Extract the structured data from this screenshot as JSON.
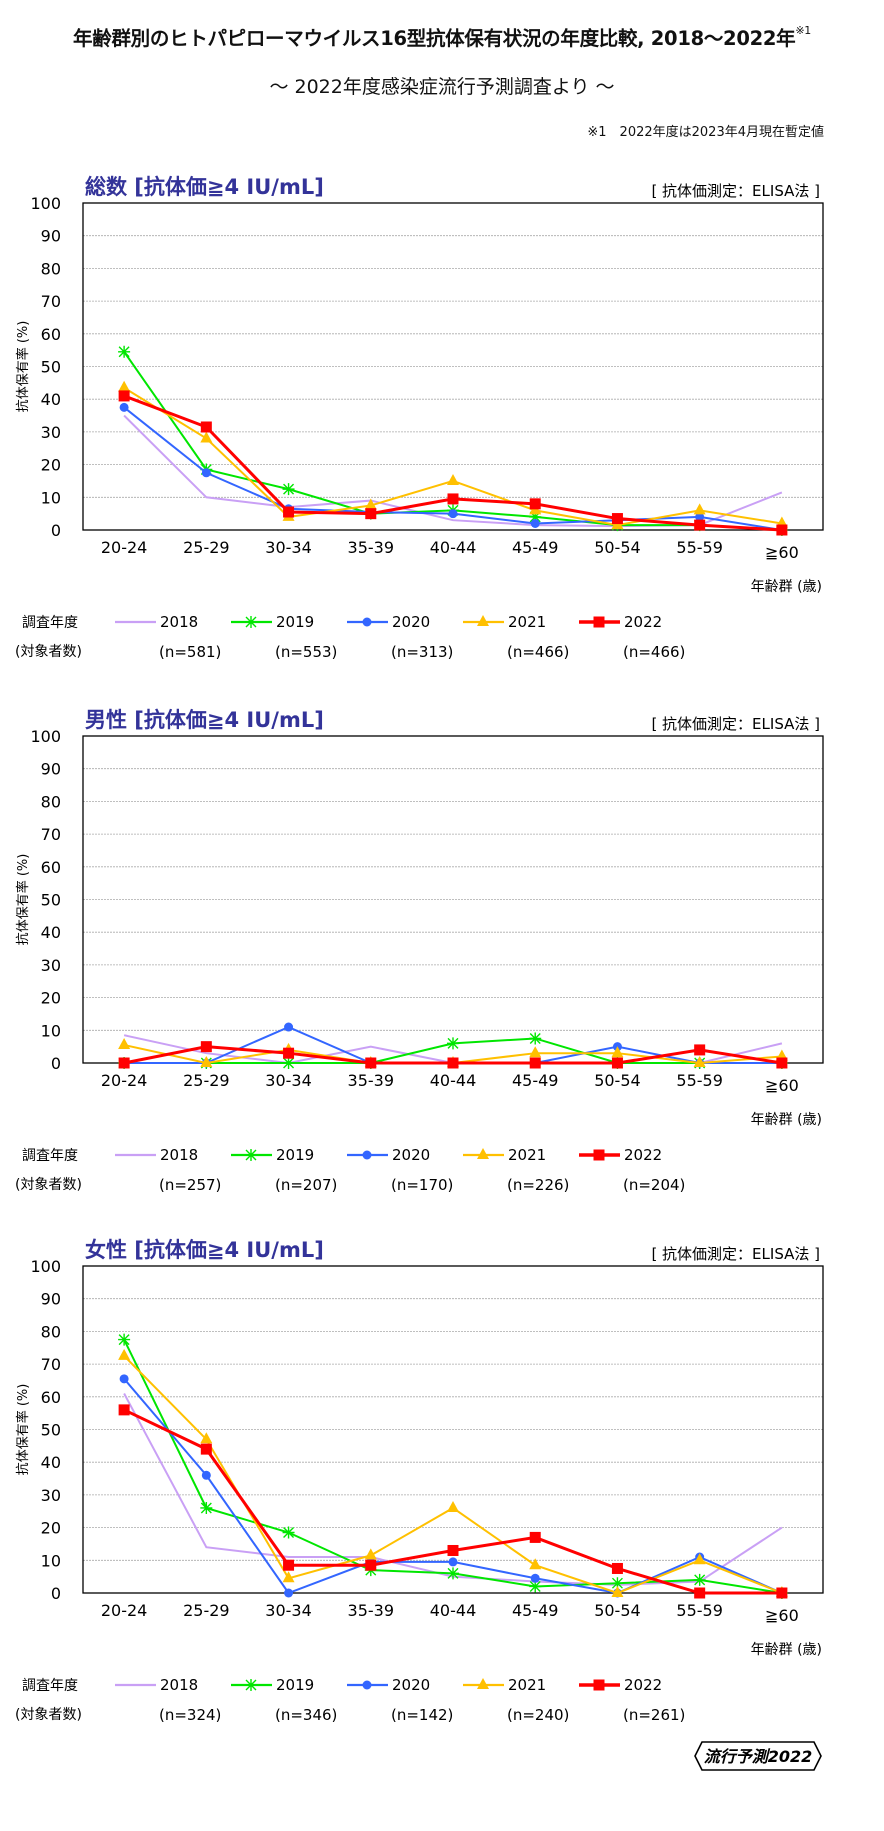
{
  "header": {
    "title": "年齢群別のヒトパピローマウイルス16型抗体保有状況の年度比較, 2018～2022年",
    "title_note_mark": "※1",
    "subtitle": "～ 2022年度感染症流行予測調査より ～",
    "footnote": "※1　2022年度は2023年4月現在暫定値"
  },
  "logo": {
    "text": "流行予測2022"
  },
  "colors": {
    "2018": "#c9a0f5",
    "2019": "#00e600",
    "2020": "#3366ff",
    "2021": "#ffc000",
    "2022": "#ff0000",
    "heading": "#333399"
  },
  "chart_data": [
    {
      "type": "line",
      "title": "総数 [抗体価≧4 IU/mL]",
      "method_note": "[ 抗体価測定：ELISA法 ]",
      "ylabel": "抗体保有率 (%)",
      "xlabel": "年齢群 (歳)",
      "ylim": [
        0,
        100
      ],
      "yticks": [
        "0",
        "10",
        "20",
        "30",
        "40",
        "50",
        "60",
        "70",
        "80",
        "90",
        "100"
      ],
      "grid": true,
      "legend_title": "調査年度",
      "legend_subtitle": "(対象者数)",
      "categories": [
        "20-24",
        "25-29",
        "30-34",
        "35-39",
        "40-44",
        "45-49",
        "50-54",
        "55-59",
        "≧60"
      ],
      "series": [
        {
          "name": "2018",
          "n": "(n=581)",
          "marker": "none",
          "values": [
            35,
            10,
            7,
            9,
            3,
            1.5,
            1.2,
            1.5,
            11.5
          ]
        },
        {
          "name": "2019",
          "n": "(n=553)",
          "marker": "asterisk",
          "values": [
            54.5,
            18.5,
            12.5,
            5,
            6,
            4,
            1.5,
            1.5,
            0
          ]
        },
        {
          "name": "2020",
          "n": "(n=313)",
          "marker": "circle",
          "values": [
            37.5,
            17.5,
            6.5,
            5.5,
            5,
            2,
            3,
            4,
            0
          ]
        },
        {
          "name": "2021",
          "n": "(n=466)",
          "marker": "triangle",
          "values": [
            43.5,
            28,
            4,
            7.5,
            15,
            6,
            1.5,
            6,
            2
          ]
        },
        {
          "name": "2022",
          "n": "(n=466)",
          "marker": "square",
          "values": [
            41,
            31.5,
            5.5,
            5,
            9.5,
            8,
            3.5,
            1.5,
            0
          ]
        }
      ]
    },
    {
      "type": "line",
      "title": "男性 [抗体価≧4 IU/mL]",
      "method_note": "[ 抗体価測定：ELISA法 ]",
      "ylabel": "抗体保有率 (%)",
      "xlabel": "年齢群 (歳)",
      "ylim": [
        0,
        100
      ],
      "yticks": [
        "0",
        "10",
        "20",
        "30",
        "40",
        "50",
        "60",
        "70",
        "80",
        "90",
        "100"
      ],
      "grid": true,
      "legend_title": "調査年度",
      "legend_subtitle": "(対象者数)",
      "categories": [
        "20-24",
        "25-29",
        "30-34",
        "35-39",
        "40-44",
        "45-49",
        "50-54",
        "55-59",
        "≧60"
      ],
      "series": [
        {
          "name": "2018",
          "n": "(n=257)",
          "marker": "none",
          "values": [
            8.5,
            3,
            0,
            5,
            0,
            0,
            0,
            0,
            6
          ]
        },
        {
          "name": "2019",
          "n": "(n=207)",
          "marker": "asterisk",
          "values": [
            0,
            0,
            0,
            0,
            6,
            7.5,
            0,
            0,
            0
          ]
        },
        {
          "name": "2020",
          "n": "(n=170)",
          "marker": "circle",
          "values": [
            0,
            0,
            11,
            0,
            0,
            0,
            5,
            0,
            0
          ]
        },
        {
          "name": "2021",
          "n": "(n=226)",
          "marker": "triangle",
          "values": [
            5.5,
            0,
            4,
            0,
            0,
            3,
            3,
            0,
            2
          ]
        },
        {
          "name": "2022",
          "n": "(n=204)",
          "marker": "square",
          "values": [
            0,
            5,
            3,
            0,
            0,
            0,
            0,
            4,
            0
          ]
        }
      ]
    },
    {
      "type": "line",
      "title": "女性 [抗体価≧4 IU/mL]",
      "method_note": "[ 抗体価測定：ELISA法 ]",
      "ylabel": "抗体保有率 (%)",
      "xlabel": "年齢群 (歳)",
      "ylim": [
        0,
        100
      ],
      "yticks": [
        "0",
        "10",
        "20",
        "30",
        "40",
        "50",
        "60",
        "70",
        "80",
        "90",
        "100"
      ],
      "grid": true,
      "legend_title": "調査年度",
      "legend_subtitle": "(対象者数)",
      "categories": [
        "20-24",
        "25-29",
        "30-34",
        "35-39",
        "40-44",
        "45-49",
        "50-54",
        "55-59",
        "≧60"
      ],
      "series": [
        {
          "name": "2018",
          "n": "(n=324)",
          "marker": "none",
          "values": [
            61,
            14,
            11,
            11,
            5,
            3.5,
            2.5,
            3.5,
            20
          ]
        },
        {
          "name": "2019",
          "n": "(n=346)",
          "marker": "asterisk",
          "values": [
            77.5,
            26,
            18.5,
            7,
            6,
            2,
            3,
            4,
            0
          ]
        },
        {
          "name": "2020",
          "n": "(n=142)",
          "marker": "circle",
          "values": [
            65.5,
            36,
            0,
            9.5,
            9.5,
            4.5,
            0,
            11,
            0
          ]
        },
        {
          "name": "2021",
          "n": "(n=240)",
          "marker": "triangle",
          "values": [
            72.5,
            47,
            4.5,
            11.5,
            26,
            8.5,
            0,
            10,
            0
          ]
        },
        {
          "name": "2022",
          "n": "(n=261)",
          "marker": "square",
          "values": [
            56,
            44,
            8.5,
            8.5,
            13,
            17,
            7.5,
            0,
            0
          ]
        }
      ]
    }
  ]
}
